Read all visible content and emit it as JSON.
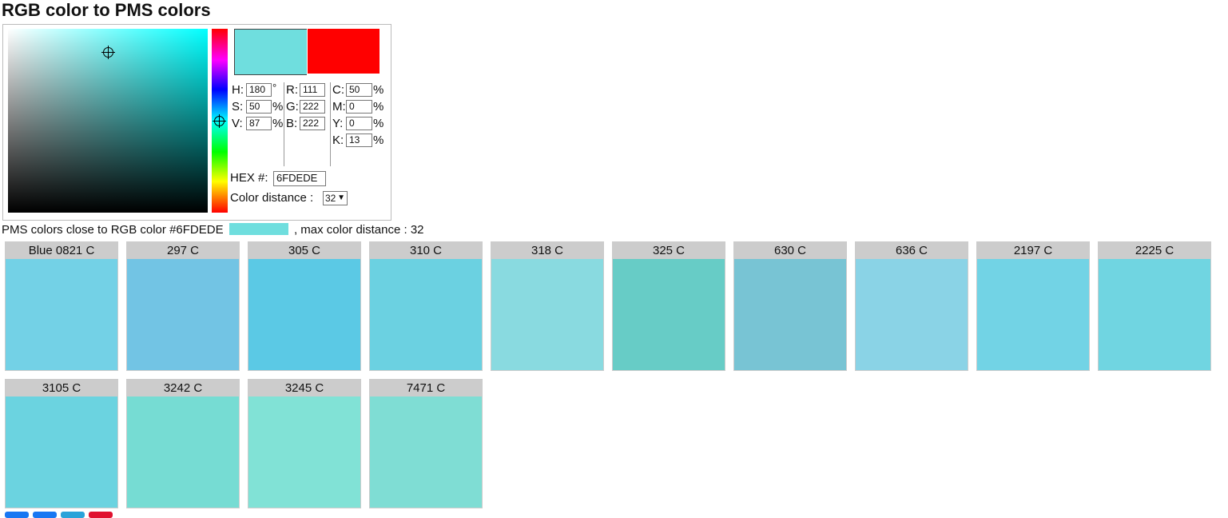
{
  "title": "RGB color to PMS colors",
  "picker": {
    "current_color": "#6FDEDE",
    "previous_color": "#FF0000",
    "hsv": {
      "h_label": "H:",
      "h": "180",
      "h_unit": "°",
      "s_label": "S:",
      "s": "50",
      "s_unit": "%",
      "v_label": "V:",
      "v": "87",
      "v_unit": "%"
    },
    "rgb": {
      "r_label": "R:",
      "r": "111",
      "g_label": "G:",
      "g": "222",
      "b_label": "B:",
      "b": "222"
    },
    "cmyk": {
      "c_label": "C:",
      "c": "50",
      "m_label": "M:",
      "m": "0",
      "y_label": "Y:",
      "y": "0",
      "k_label": "K:",
      "k": "13",
      "unit": "%"
    },
    "hex_label": "HEX #:",
    "hex": "6FDEDE",
    "distance_label": "Color distance :",
    "distance": "32"
  },
  "summary": {
    "prefix": "PMS colors close to RGB color #6FDEDE",
    "chip_color": "#6FDEDE",
    "suffix": ", max color distance : 32"
  },
  "pms": [
    {
      "name": "Blue 0821 C",
      "color": "#73D1E6"
    },
    {
      "name": "297 C",
      "color": "#72C4E4"
    },
    {
      "name": "305 C",
      "color": "#5BC9E5"
    },
    {
      "name": "310 C",
      "color": "#6BD1E1"
    },
    {
      "name": "318 C",
      "color": "#89DAE0"
    },
    {
      "name": "325 C",
      "color": "#67CCC6"
    },
    {
      "name": "630 C",
      "color": "#78C4D4"
    },
    {
      "name": "636 C",
      "color": "#8AD3E6"
    },
    {
      "name": "2197 C",
      "color": "#72D3E5"
    },
    {
      "name": "2225 C",
      "color": "#70D5E1"
    },
    {
      "name": "3105 C",
      "color": "#6BD3E0"
    },
    {
      "name": "3242 C",
      "color": "#76DCD3"
    },
    {
      "name": "3245 C",
      "color": "#81E2D6"
    },
    {
      "name": "7471 C",
      "color": "#7FDDD4"
    }
  ],
  "share_colors": [
    "#1877F2",
    "#1877F2",
    "#2AA3D9",
    "#E0102E"
  ]
}
